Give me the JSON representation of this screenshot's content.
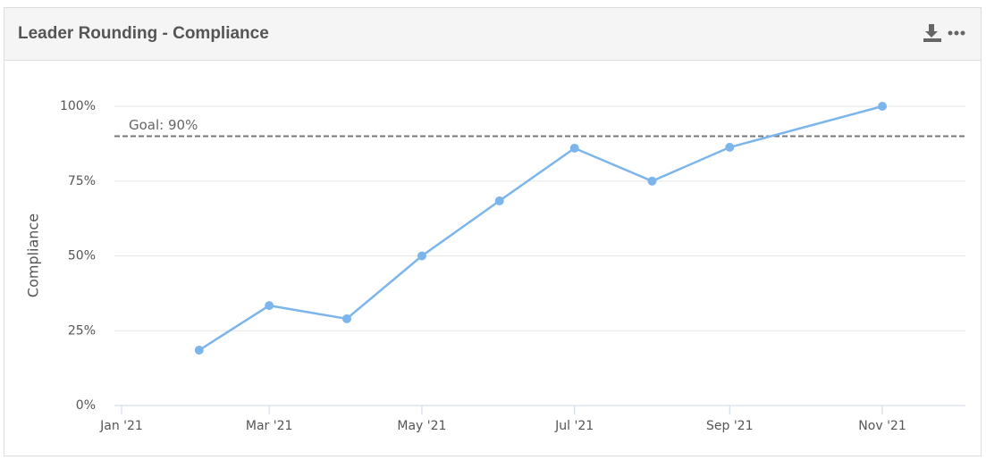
{
  "chart_data": {
    "type": "line",
    "title": "Leader Rounding - Compliance",
    "ylabel": "Compliance",
    "x": [
      "2021-02",
      "2021-03",
      "2021-04",
      "2021-05",
      "2021-06",
      "2021-07",
      "2021-08",
      "2021-09",
      "2021-11"
    ],
    "values": [
      18.5,
      33.4,
      29,
      50,
      68.4,
      86,
      75,
      86.3,
      100
    ],
    "color": "#7cb5ec",
    "xlim": [
      "2021-01",
      "2021-12"
    ],
    "xticks": [
      {
        "value": "2021-01",
        "label": "Jan '21"
      },
      {
        "value": "2021-03",
        "label": "Mar '21"
      },
      {
        "value": "2021-05",
        "label": "May '21"
      },
      {
        "value": "2021-07",
        "label": "Jul '21"
      },
      {
        "value": "2021-09",
        "label": "Sep '21"
      },
      {
        "value": "2021-11",
        "label": "Nov '21"
      }
    ],
    "ylim": [
      0,
      100
    ],
    "yticks": [
      {
        "value": 0,
        "label": "0%"
      },
      {
        "value": 25,
        "label": "25%"
      },
      {
        "value": 50,
        "label": "50%"
      },
      {
        "value": 75,
        "label": "75%"
      },
      {
        "value": 100,
        "label": "100%"
      }
    ],
    "grid": true,
    "goal": {
      "value": 90,
      "label": "Goal: 90%"
    }
  }
}
